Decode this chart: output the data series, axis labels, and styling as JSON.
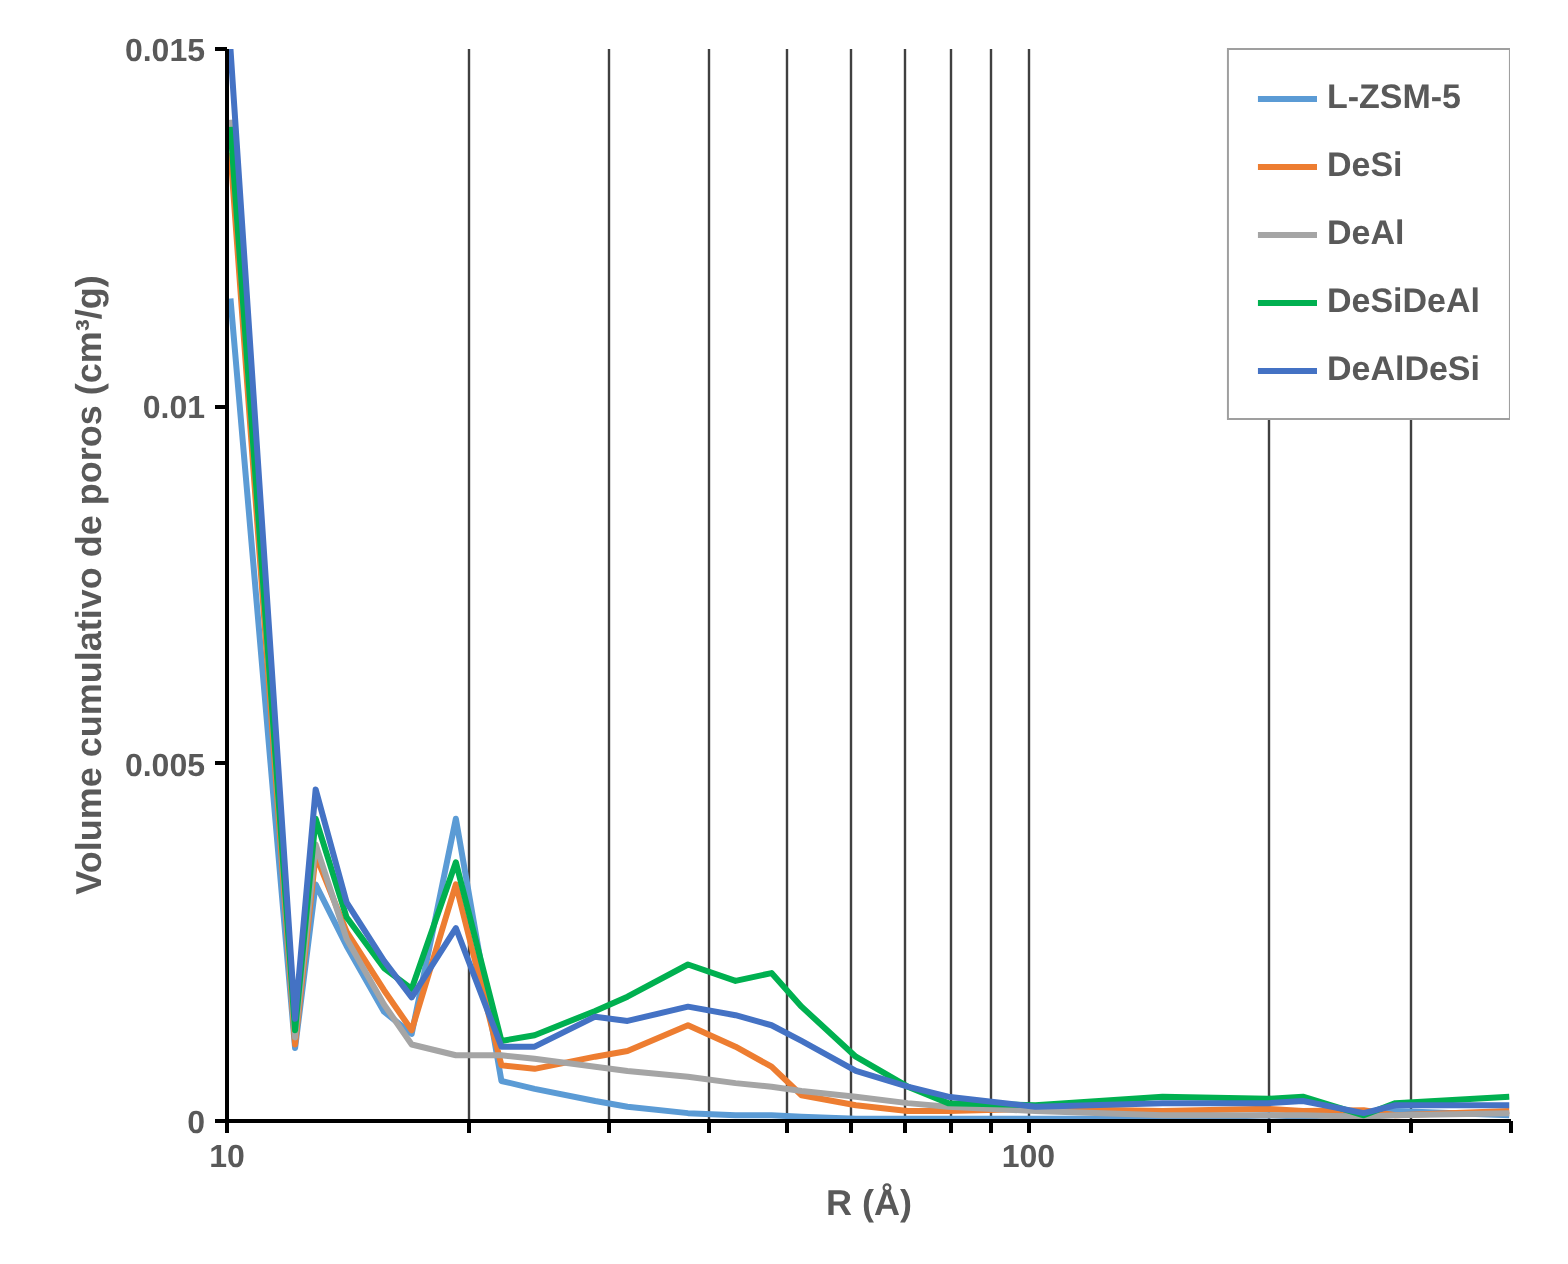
{
  "chart_data": {
    "type": "line",
    "xlabel": "R (Å)",
    "ylabel": "Volume cumulativo de poros (cm³/g)",
    "x": [
      10.1,
      12.16,
      12.9,
      14.1,
      15.7,
      17.0,
      19.3,
      22.0,
      24.2,
      28.8,
      31.6,
      37.6,
      43.1,
      47.8,
      52.1,
      60.9,
      70.7,
      79.4,
      102,
      147,
      199,
      220,
      262,
      287,
      398
    ],
    "series": [
      {
        "name": "L-ZSM-5",
        "color": "#5b9bd5",
        "values": [
          0.01151,
          0.00102,
          0.00331,
          0.00245,
          0.00153,
          0.00122,
          0.00423,
          0.00056,
          0.00045,
          0.00028,
          0.0002,
          0.00011,
          8e-05,
          8e-05,
          6e-05,
          3e-05,
          3e-05,
          3e-05,
          3e-05,
          3e-05,
          8e-05,
          6e-05,
          0.00011,
          0.00014,
          8e-05
        ]
      },
      {
        "name": "DeSi",
        "color": "#ed7d31",
        "values": [
          0.01355,
          0.00107,
          0.00372,
          0.00265,
          0.00183,
          0.00127,
          0.00331,
          0.00078,
          0.00073,
          0.0009,
          0.00098,
          0.00134,
          0.00104,
          0.00076,
          0.00036,
          0.00022,
          0.00014,
          0.00014,
          0.00017,
          0.00014,
          0.00017,
          0.00014,
          0.00015,
          8e-05,
          0.00014
        ]
      },
      {
        "name": "DeAl",
        "color": "#a5a5a5",
        "values": [
          0.01401,
          0.00117,
          0.00387,
          0.00255,
          0.00163,
          0.00107,
          0.00092,
          0.00092,
          0.00087,
          0.00076,
          0.0007,
          0.00062,
          0.00053,
          0.00048,
          0.00042,
          0.00034,
          0.00025,
          0.0002,
          0.00014,
          8e-05,
          8e-05,
          8e-05,
          6e-05,
          8e-05,
          0.00011
        ]
      },
      {
        "name": "DeSiDeAl",
        "color": "#00b050",
        "values": [
          0.01391,
          0.00127,
          0.00423,
          0.00285,
          0.00214,
          0.00185,
          0.00362,
          0.00112,
          0.0012,
          0.00154,
          0.00174,
          0.00219,
          0.00196,
          0.00207,
          0.0016,
          0.0009,
          0.00048,
          0.00025,
          0.00022,
          0.00034,
          0.00031,
          0.00034,
          8e-05,
          0.00025,
          0.00034
        ]
      },
      {
        "name": "DeAlDeSi",
        "color": "#4472c4",
        "values": [
          0.015,
          0.00143,
          0.00464,
          0.00306,
          0.00224,
          0.00173,
          0.0027,
          0.00104,
          0.00104,
          0.00146,
          0.0014,
          0.0016,
          0.00148,
          0.00134,
          0.00112,
          0.0007,
          0.00048,
          0.00034,
          0.0002,
          0.00025,
          0.00025,
          0.00028,
          0.00011,
          0.00022,
          0.00022
        ]
      }
    ],
    "log": "x",
    "xlim": [
      10,
      400
    ],
    "xticks": [
      10,
      {
        "value": 20,
        "label": null
      },
      {
        "value": 30,
        "label": null
      },
      {
        "value": 40,
        "label": null
      },
      {
        "value": 50,
        "label": null
      },
      {
        "value": 60,
        "label": null
      },
      {
        "value": 70,
        "label": null
      },
      {
        "value": 80,
        "label": null
      },
      {
        "value": 90,
        "label": null
      },
      100,
      {
        "value": 200,
        "label": null
      },
      {
        "value": 300,
        "label": null
      },
      {
        "value": 400,
        "label": null
      }
    ],
    "ylim": [
      0,
      0.015
    ],
    "yticks": [
      0,
      0.005,
      0.01,
      0.015
    ],
    "grid": "x",
    "legend": "top right",
    "marker": "none",
    "line_style": "solid"
  }
}
